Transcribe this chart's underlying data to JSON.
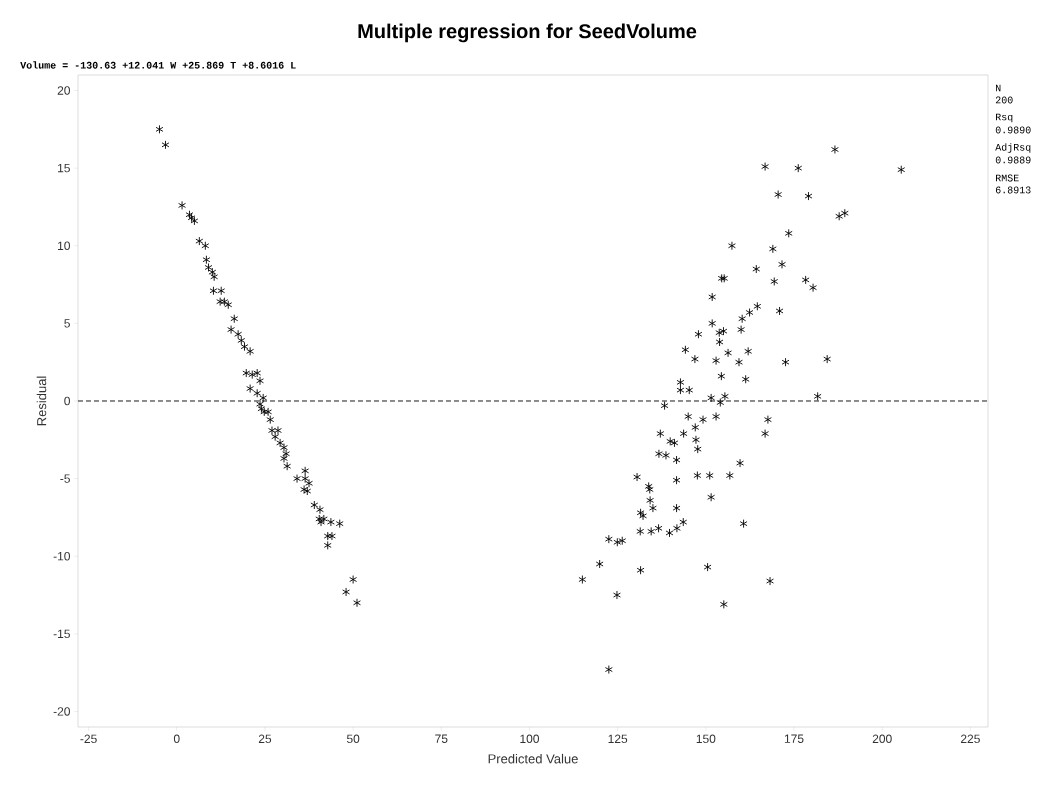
{
  "chart_data": {
    "type": "scatter",
    "title": "Multiple regression for SeedVolume",
    "xlabel": "Predicted Value",
    "ylabel": "Residual",
    "annotations": [
      "Volume = -130.63 +12.041 W +25.869 T +8.6016 L",
      "N",
      "200",
      "Rsq",
      "0.9890",
      "AdjRsq",
      "0.9889",
      "RMSE",
      "6.8913"
    ],
    "x": [
      -4.9,
      -3.2,
      1.5,
      3.6,
      4.2,
      5.0,
      6.4,
      8.1,
      8.4,
      9.0,
      10.1,
      10.6,
      10.4,
      12.6,
      13.5,
      12.3,
      14.6,
      16.3,
      15.4,
      17.4,
      18.3,
      19.2,
      20.8,
      19.7,
      21.4,
      22.8,
      20.8,
      23.6,
      22.8,
      24.5,
      23.6,
      24.8,
      25.9,
      24.0,
      26.5,
      27.0,
      27.9,
      28.7,
      29.3,
      30.4,
      31.0,
      31.3,
      30.4,
      34.1,
      36.4,
      36.4,
      36.1,
      37.0,
      37.5,
      39.0,
      40.6,
      40.4,
      41.7,
      40.9,
      43.7,
      46.2,
      42.8,
      44.0,
      42.8,
      50.0,
      48.0,
      51.1,
      186.6,
      166.8,
      176.2,
      205.4,
      170.5,
      179.1,
      187.8,
      189.4,
      173.5,
      157.4,
      169.0,
      164.3,
      171.6,
      154.5,
      155.2,
      169.4,
      178.3,
      180.4,
      151.8,
      164.6,
      162.4,
      160.3,
      170.9,
      151.8,
      147.9,
      153.8,
      155.0,
      153.9,
      160.0,
      144.2,
      146.9,
      156.3,
      162.0,
      152.9,
      159.4,
      172.6,
      184.4,
      154.4,
      161.3,
      142.8,
      142.8,
      145.3,
      151.5,
      155.4,
      154.1,
      181.7,
      138.3,
      145.0,
      147.0,
      149.2,
      152.9,
      167.6,
      166.8,
      137.1,
      143.7,
      139.9,
      141.1,
      147.2,
      147.7,
      136.7,
      138.7,
      141.7,
      159.7,
      130.5,
      147.6,
      151.1,
      156.8,
      133.8,
      134.1,
      141.7,
      151.5,
      134.2,
      135.0,
      141.7,
      131.5,
      132.2,
      143.6,
      160.7,
      131.4,
      134.5,
      136.6,
      139.7,
      141.8,
      122.5,
      124.9,
      126.3,
      119.9,
      115.0,
      131.5,
      150.5,
      168.2,
      124.8,
      155.1,
      122.5
    ],
    "values": [
      17.5,
      16.5,
      12.6,
      12.0,
      11.8,
      11.6,
      10.3,
      10.0,
      9.1,
      8.6,
      8.3,
      8.0,
      7.1,
      7.1,
      6.4,
      6.4,
      6.2,
      5.3,
      4.6,
      4.3,
      3.9,
      3.5,
      3.2,
      1.8,
      1.7,
      1.8,
      0.8,
      1.3,
      0.5,
      0.2,
      -0.2,
      -0.7,
      -0.7,
      -0.5,
      -1.2,
      -1.9,
      -2.3,
      -1.9,
      -2.7,
      -3.0,
      -3.4,
      -4.2,
      -3.7,
      -5.0,
      -4.5,
      -5.0,
      -5.7,
      -5.8,
      -5.3,
      -6.7,
      -7.0,
      -7.6,
      -7.6,
      -7.8,
      -7.8,
      -7.9,
      -8.7,
      -8.7,
      -9.3,
      -11.5,
      -12.3,
      -13.0,
      16.2,
      15.1,
      15.0,
      14.9,
      13.3,
      13.2,
      11.9,
      12.1,
      10.8,
      10.0,
      9.8,
      8.5,
      8.8,
      7.9,
      7.9,
      7.7,
      7.8,
      7.3,
      6.7,
      6.1,
      5.7,
      5.3,
      5.8,
      5.0,
      4.3,
      4.4,
      4.5,
      3.8,
      4.6,
      3.3,
      2.7,
      3.1,
      3.2,
      2.6,
      2.5,
      2.5,
      2.7,
      1.6,
      1.4,
      1.2,
      0.7,
      0.7,
      0.2,
      0.3,
      -0.1,
      0.3,
      -0.3,
      -1.0,
      -1.7,
      -1.2,
      -1.0,
      -1.2,
      -2.1,
      -2.1,
      -2.1,
      -2.6,
      -2.7,
      -2.5,
      -3.1,
      -3.4,
      -3.5,
      -3.8,
      -4.0,
      -4.9,
      -4.8,
      -4.8,
      -4.8,
      -5.5,
      -5.7,
      -5.1,
      -6.2,
      -6.4,
      -6.9,
      -6.9,
      -7.2,
      -7.4,
      -7.8,
      -7.9,
      -8.4,
      -8.4,
      -8.2,
      -8.5,
      -8.2,
      -8.9,
      -9.1,
      -9.0,
      -10.5,
      -11.5,
      -10.9,
      -10.7,
      -11.6,
      -12.5,
      -13.1,
      -17.3
    ],
    "color": "#000000",
    "marker": "cross",
    "xlim": [
      -28,
      230
    ],
    "ylim": [
      -21,
      21
    ],
    "xticks": [
      -25,
      0,
      25,
      50,
      75,
      100,
      125,
      150,
      175,
      200,
      225
    ],
    "yticks": [
      -20,
      -15,
      -10,
      -5,
      0,
      5,
      10,
      15,
      20
    ],
    "ref_lines": [
      {
        "axis": "y",
        "value": 0,
        "line_style": "dashed",
        "color": "#000000"
      }
    ]
  }
}
